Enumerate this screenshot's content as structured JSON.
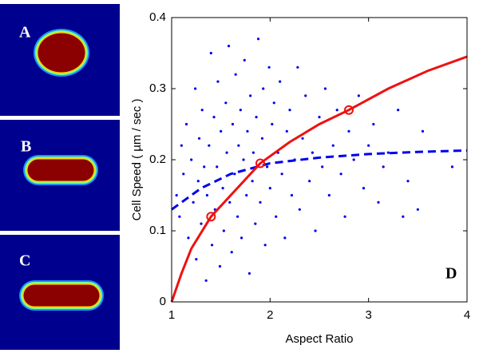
{
  "chart_data": {
    "type": "scatter",
    "panels": [
      {
        "label": "A"
      },
      {
        "label": "B"
      },
      {
        "label": "C"
      }
    ],
    "label": "D",
    "xlabel": "Aspect Ratio",
    "ylabel": "Cell Speed ( µm / sec )",
    "xlim": [
      1,
      4
    ],
    "ylim": [
      0,
      0.4
    ],
    "xticks": [
      1,
      2,
      3,
      4
    ],
    "yticks": [
      0,
      0.1,
      0.2,
      0.3,
      0.4
    ],
    "series": [
      {
        "style": "dots",
        "color": "#0000ee",
        "x": [
          1.05,
          1.08,
          1.1,
          1.12,
          1.15,
          1.17,
          1.2,
          1.22,
          1.24,
          1.25,
          1.27,
          1.28,
          1.3,
          1.31,
          1.33,
          1.35,
          1.36,
          1.38,
          1.4,
          1.41,
          1.43,
          1.44,
          1.46,
          1.47,
          1.49,
          1.5,
          1.52,
          1.53,
          1.55,
          1.56,
          1.58,
          1.59,
          1.61,
          1.62,
          1.64,
          1.65,
          1.67,
          1.68,
          1.7,
          1.71,
          1.73,
          1.74,
          1.76,
          1.77,
          1.79,
          1.8,
          1.82,
          1.83,
          1.85,
          1.86,
          1.88,
          1.9,
          1.92,
          1.93,
          1.95,
          1.97,
          1.99,
          2.0,
          2.02,
          2.04,
          2.06,
          2.08,
          2.1,
          2.12,
          2.15,
          2.17,
          2.2,
          2.22,
          2.25,
          2.28,
          2.3,
          2.33,
          2.36,
          2.4,
          2.43,
          2.46,
          2.5,
          2.53,
          2.56,
          2.6,
          2.64,
          2.68,
          2.72,
          2.76,
          2.8,
          2.85,
          2.9,
          2.95,
          3.0,
          3.05,
          3.1,
          3.15,
          3.2,
          3.3,
          3.35,
          3.4,
          3.5,
          3.55,
          3.85
        ],
        "values": [
          0.15,
          0.12,
          0.22,
          0.18,
          0.25,
          0.09,
          0.2,
          0.14,
          0.3,
          0.06,
          0.17,
          0.23,
          0.11,
          0.27,
          0.19,
          0.03,
          0.15,
          0.22,
          0.35,
          0.08,
          0.26,
          0.13,
          0.19,
          0.31,
          0.05,
          0.24,
          0.16,
          0.1,
          0.28,
          0.21,
          0.36,
          0.14,
          0.07,
          0.25,
          0.18,
          0.32,
          0.12,
          0.22,
          0.27,
          0.09,
          0.2,
          0.34,
          0.15,
          0.24,
          0.04,
          0.29,
          0.17,
          0.21,
          0.11,
          0.26,
          0.37,
          0.14,
          0.23,
          0.3,
          0.08,
          0.19,
          0.33,
          0.16,
          0.25,
          0.28,
          0.12,
          0.21,
          0.31,
          0.18,
          0.09,
          0.24,
          0.27,
          0.15,
          0.2,
          0.33,
          0.13,
          0.23,
          0.29,
          0.17,
          0.21,
          0.1,
          0.26,
          0.19,
          0.3,
          0.15,
          0.22,
          0.27,
          0.18,
          0.12,
          0.24,
          0.2,
          0.29,
          0.16,
          0.22,
          0.25,
          0.14,
          0.19,
          0.21,
          0.27,
          0.12,
          0.17,
          0.13,
          0.24,
          0.19
        ]
      },
      {
        "style": "dashed",
        "color": "#0000ee",
        "x": [
          1,
          1.3,
          1.6,
          2,
          2.5,
          3,
          3.5,
          4
        ],
        "values": [
          0.13,
          0.16,
          0.18,
          0.195,
          0.203,
          0.208,
          0.211,
          0.213
        ]
      },
      {
        "style": "solid",
        "color": "#ee1111",
        "x": [
          1,
          1.1,
          1.2,
          1.4,
          1.6,
          1.9,
          2.2,
          2.5,
          2.8,
          3.2,
          3.6,
          4
        ],
        "values": [
          0,
          0.04,
          0.075,
          0.12,
          0.15,
          0.195,
          0.225,
          0.25,
          0.27,
          0.3,
          0.325,
          0.345
        ]
      },
      {
        "style": "circles",
        "color": "#ee1111",
        "x": [
          1.4,
          1.9,
          2.8
        ],
        "values": [
          0.12,
          0.195,
          0.27
        ]
      }
    ]
  }
}
